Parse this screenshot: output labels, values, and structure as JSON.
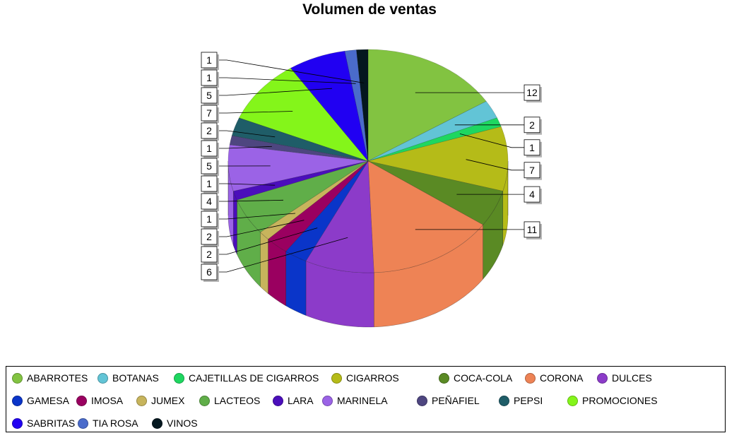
{
  "chart_data": {
    "type": "pie",
    "title": "Volumen de ventas",
    "three_d": true,
    "legend_position": "bottom",
    "slices": [
      {
        "label": "ABARROTES",
        "value": 12,
        "color": "#82C341"
      },
      {
        "label": "BOTANAS",
        "value": 2,
        "color": "#62C4D6"
      },
      {
        "label": "CAJETILLAS DE CIGARROS",
        "value": 1,
        "color": "#1ED760"
      },
      {
        "label": "CIGARROS",
        "value": 7,
        "color": "#B5BB18"
      },
      {
        "label": "COCA-COLA",
        "value": 4,
        "color": "#5A8A24"
      },
      {
        "label": "CORONA",
        "value": 11,
        "color": "#EE8355"
      },
      {
        "label": "DULCES",
        "value": 6,
        "color": "#8C3BC9"
      },
      {
        "label": "GAMESA",
        "value": 2,
        "color": "#0A35C9"
      },
      {
        "label": "IMOSA",
        "value": 2,
        "color": "#9A0060"
      },
      {
        "label": "JUMEX",
        "value": 1,
        "color": "#C7B45C"
      },
      {
        "label": "LACTEOS",
        "value": 4,
        "color": "#60AE49"
      },
      {
        "label": "LARA",
        "value": 1,
        "color": "#4B0EBB"
      },
      {
        "label": "MARINELA",
        "value": 5,
        "color": "#9B63E6"
      },
      {
        "label": "PEÑAFIEL",
        "value": 1,
        "color": "#4E4680"
      },
      {
        "label": "PEPSI",
        "value": 2,
        "color": "#1F5D68"
      },
      {
        "label": "PROMOCIONES",
        "value": 7,
        "color": "#84F51A"
      },
      {
        "label": "SABRITAS",
        "value": 5,
        "color": "#2100F2"
      },
      {
        "label": "TIA ROSA",
        "value": 1,
        "color": "#4A6BCB"
      },
      {
        "label": "VINOS",
        "value": 1,
        "color": "#04171F"
      }
    ]
  }
}
